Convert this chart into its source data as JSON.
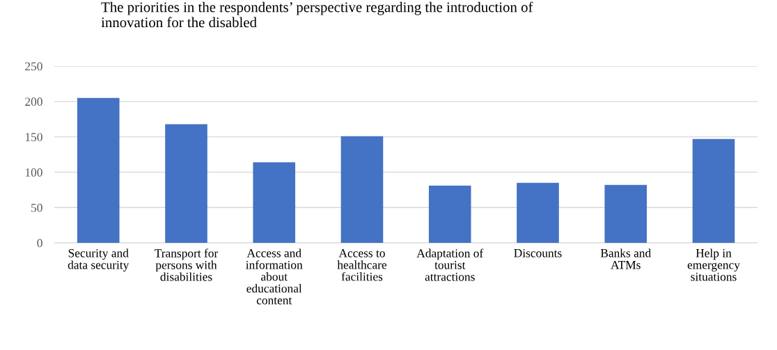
{
  "chart_data": {
    "type": "bar",
    "title": "The priorities in the respondents’ perspective regarding the introduction of\ninnovation for the disabled",
    "categories": [
      "Security and\ndata security",
      "Transport for\npersons with\ndisabilities",
      "Access and\ninformation\nabout\neducational\ncontent",
      "Access to\nhealthcare\nfacilities",
      "Adaptation of\ntourist\nattractions",
      "Discounts",
      "Banks and\nATMs",
      "Help in\nemergency\nsituations"
    ],
    "values": [
      205,
      168,
      114,
      151,
      81,
      85,
      82,
      147
    ],
    "color": "#4472c4",
    "ylim": [
      0,
      250
    ],
    "yticks": [
      0,
      50,
      100,
      150,
      200,
      250
    ],
    "grid": "y",
    "legend": false
  }
}
